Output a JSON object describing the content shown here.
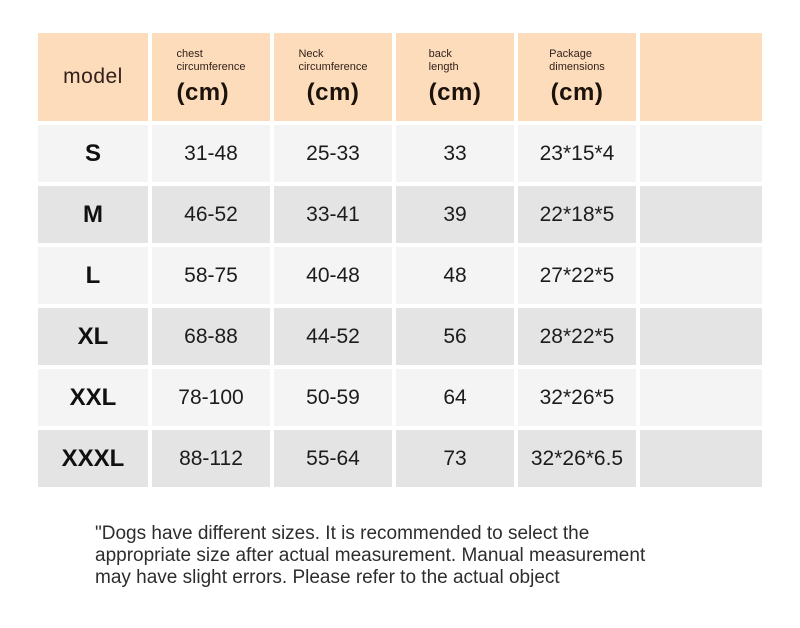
{
  "chart_data": {
    "type": "table",
    "title": "",
    "columns": [
      "model",
      "chest circumference (cm)",
      "Neck circumference (cm)",
      "back length (cm)",
      "Package dimensions (cm)",
      ""
    ],
    "rows": [
      [
        "S",
        "31-48",
        "25-33",
        "33",
        "23*15*4",
        ""
      ],
      [
        "M",
        "46-52",
        "33-41",
        "39",
        "22*18*5",
        ""
      ],
      [
        "L",
        "58-75",
        "40-48",
        "48",
        "27*22*5",
        ""
      ],
      [
        "XL",
        "68-88",
        "44-52",
        "56",
        "28*22*5",
        ""
      ],
      [
        "XXL",
        "78-100",
        "50-59",
        "64",
        "32*26*5",
        ""
      ],
      [
        "XXXL",
        "88-112",
        "55-64",
        "73",
        "32*26*6.5",
        ""
      ]
    ],
    "layout_hints": {
      "header_background": "#fcdcbb",
      "row_alternating": [
        "#f4f4f5",
        "#e4e4e5"
      ],
      "grid": "white gaps between cells"
    }
  },
  "header_display": {
    "model": "model",
    "cols": [
      {
        "line1": "chest",
        "line2": "circumference",
        "unit": "(cm)"
      },
      {
        "line1": "Neck",
        "line2": "circumference",
        "unit": "(cm)"
      },
      {
        "line1": "back",
        "line2": "length",
        "unit": "(cm)"
      },
      {
        "line1": "Package",
        "line2": "dimensions",
        "unit": "(cm)"
      }
    ]
  },
  "footnote": {
    "lines": [
      "\"Dogs have different sizes. It is recommended to select the",
      "appropriate size after actual measurement. Manual measurement",
      "may have slight errors. Please refer to the actual object"
    ]
  },
  "colors": {
    "header_bg": "#fcdcbb",
    "row_light": "#f4f4f5",
    "row_dark": "#e4e4e5",
    "gap": "#ffffff",
    "header_text": "#33221a",
    "cell_text": "#1c1c1c",
    "note_text": "#2d2d2d"
  }
}
